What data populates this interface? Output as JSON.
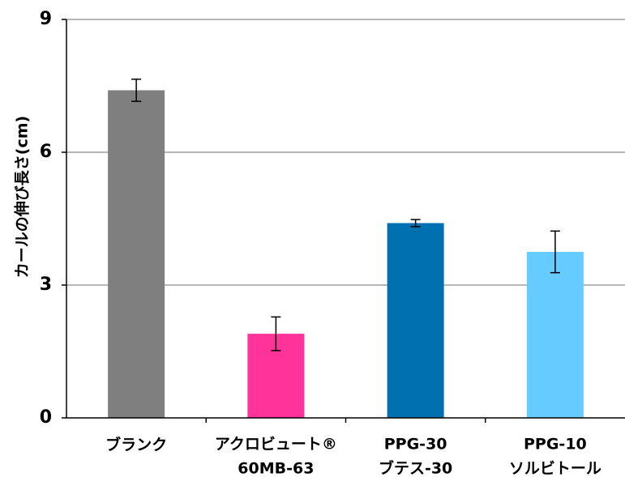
{
  "chart_data": {
    "type": "bar",
    "title": "",
    "xlabel": "",
    "ylabel": "カールの伸び長さ(cm)",
    "ylim": [
      0,
      9
    ],
    "yticks": [
      "0",
      "3",
      "6",
      "9"
    ],
    "grid": true,
    "categories": [
      [
        "ブランク"
      ],
      [
        "アクロビュート®",
        "60MB-63"
      ],
      [
        "PPG-30",
        "ブテス-30"
      ],
      [
        "PPG-10",
        "ソルビトール"
      ]
    ],
    "values": [
      7.4,
      1.9,
      4.4,
      3.75
    ],
    "errors": [
      0.25,
      0.38,
      0.08,
      0.47
    ],
    "colors": [
      "#7f7f7f",
      "#ff3399",
      "#0070b0",
      "#66ccff"
    ]
  }
}
